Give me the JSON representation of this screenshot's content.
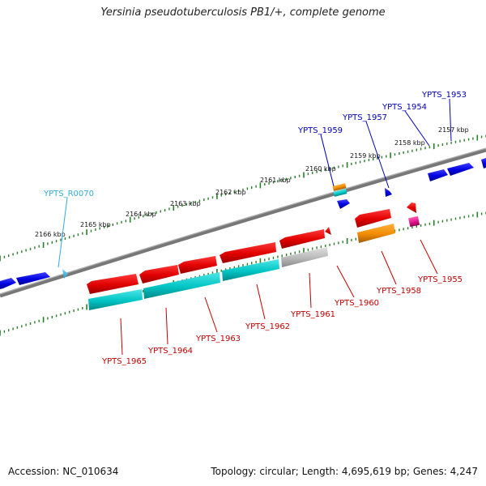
{
  "title": "Yersinia pseudotuberculosis PB1/+, complete genome",
  "footer": {
    "accession_text": "Accession: NC_010634",
    "summary_text": "Topology: circular; Length: 4,695,619 bp; Genes: 4,247"
  },
  "colors": {
    "backbone": "#777777",
    "tick": "#2a7d2a",
    "red": "#e00000",
    "cyan": "#00c4c4",
    "blue": "#0000dd",
    "orange": "#f08c00",
    "pink": "#e0168a",
    "gray": "#b8b8b8",
    "light_blue": "#33bbe6",
    "label_blue": "#0000b8",
    "label_red": "#c40000",
    "label_cyan": "#33aadd"
  },
  "scale": {
    "unit": "kbp",
    "labels": [
      "2157 kbp",
      "2158 kbp",
      "2159 kbp",
      "2160 kbp",
      "2161 kbp",
      "2162 kbp",
      "2163 kbp",
      "2164 kbp",
      "2165 kbp",
      "2166 kbp"
    ]
  },
  "gene_labels": [
    {
      "text": "YPTS_1953",
      "color": "blue"
    },
    {
      "text": "YPTS_1954",
      "color": "blue"
    },
    {
      "text": "YPTS_1957",
      "color": "blue"
    },
    {
      "text": "YPTS_1959",
      "color": "blue"
    },
    {
      "text": "YPTS_R0070",
      "color": "light_blue"
    },
    {
      "text": "YPTS_1955",
      "color": "red"
    },
    {
      "text": "YPTS_1958",
      "color": "red"
    },
    {
      "text": "YPTS_1960",
      "color": "red"
    },
    {
      "text": "YPTS_1961",
      "color": "red"
    },
    {
      "text": "YPTS_1962",
      "color": "red"
    },
    {
      "text": "YPTS_1963",
      "color": "red"
    },
    {
      "text": "YPTS_1964",
      "color": "red"
    },
    {
      "text": "YPTS_1965",
      "color": "red"
    }
  ]
}
